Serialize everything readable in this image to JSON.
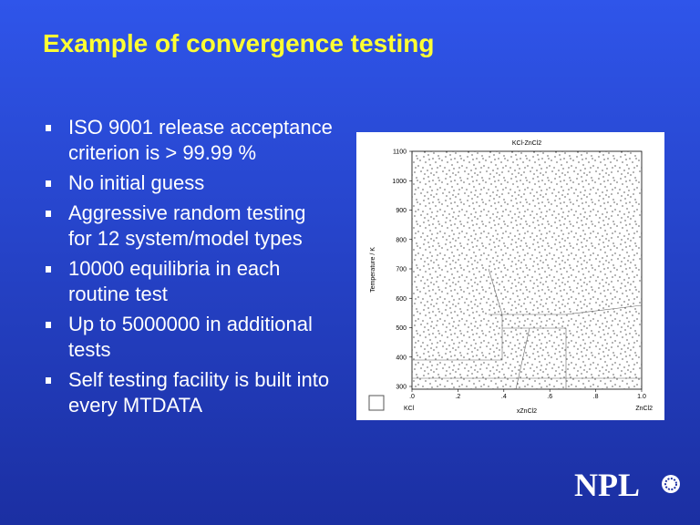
{
  "slide": {
    "title": "Example of convergence testing",
    "bullets": [
      "ISO 9001 release acceptance criterion is > 99.99 %",
      "No initial guess",
      "Aggressive random testing for 12 system/model types",
      "10000 equilibria in each routine test",
      "Up to 5000000 in additional tests",
      "Self testing facility is built into every MTDATA"
    ]
  },
  "figure": {
    "title": "KCl-ZnCl2",
    "y_label": "Temperature / K",
    "x_label": "xZnCl2",
    "left_label": "KCl",
    "right_label": "ZnCl2",
    "xlim": [
      0,
      1
    ],
    "ylim": [
      300,
      1100
    ],
    "xticks": [
      {
        "value": 0,
        "label": ".0"
      },
      {
        "value": 0.2,
        "label": ".2"
      },
      {
        "value": 0.4,
        "label": ".4"
      },
      {
        "value": 0.6,
        "label": ".6"
      },
      {
        "value": 0.8,
        "label": ".8"
      },
      {
        "value": 1,
        "label": "1.0"
      }
    ],
    "yticks": [
      300,
      400,
      500,
      600,
      700,
      800,
      900,
      1000,
      1100
    ]
  },
  "logo": "NPL"
}
